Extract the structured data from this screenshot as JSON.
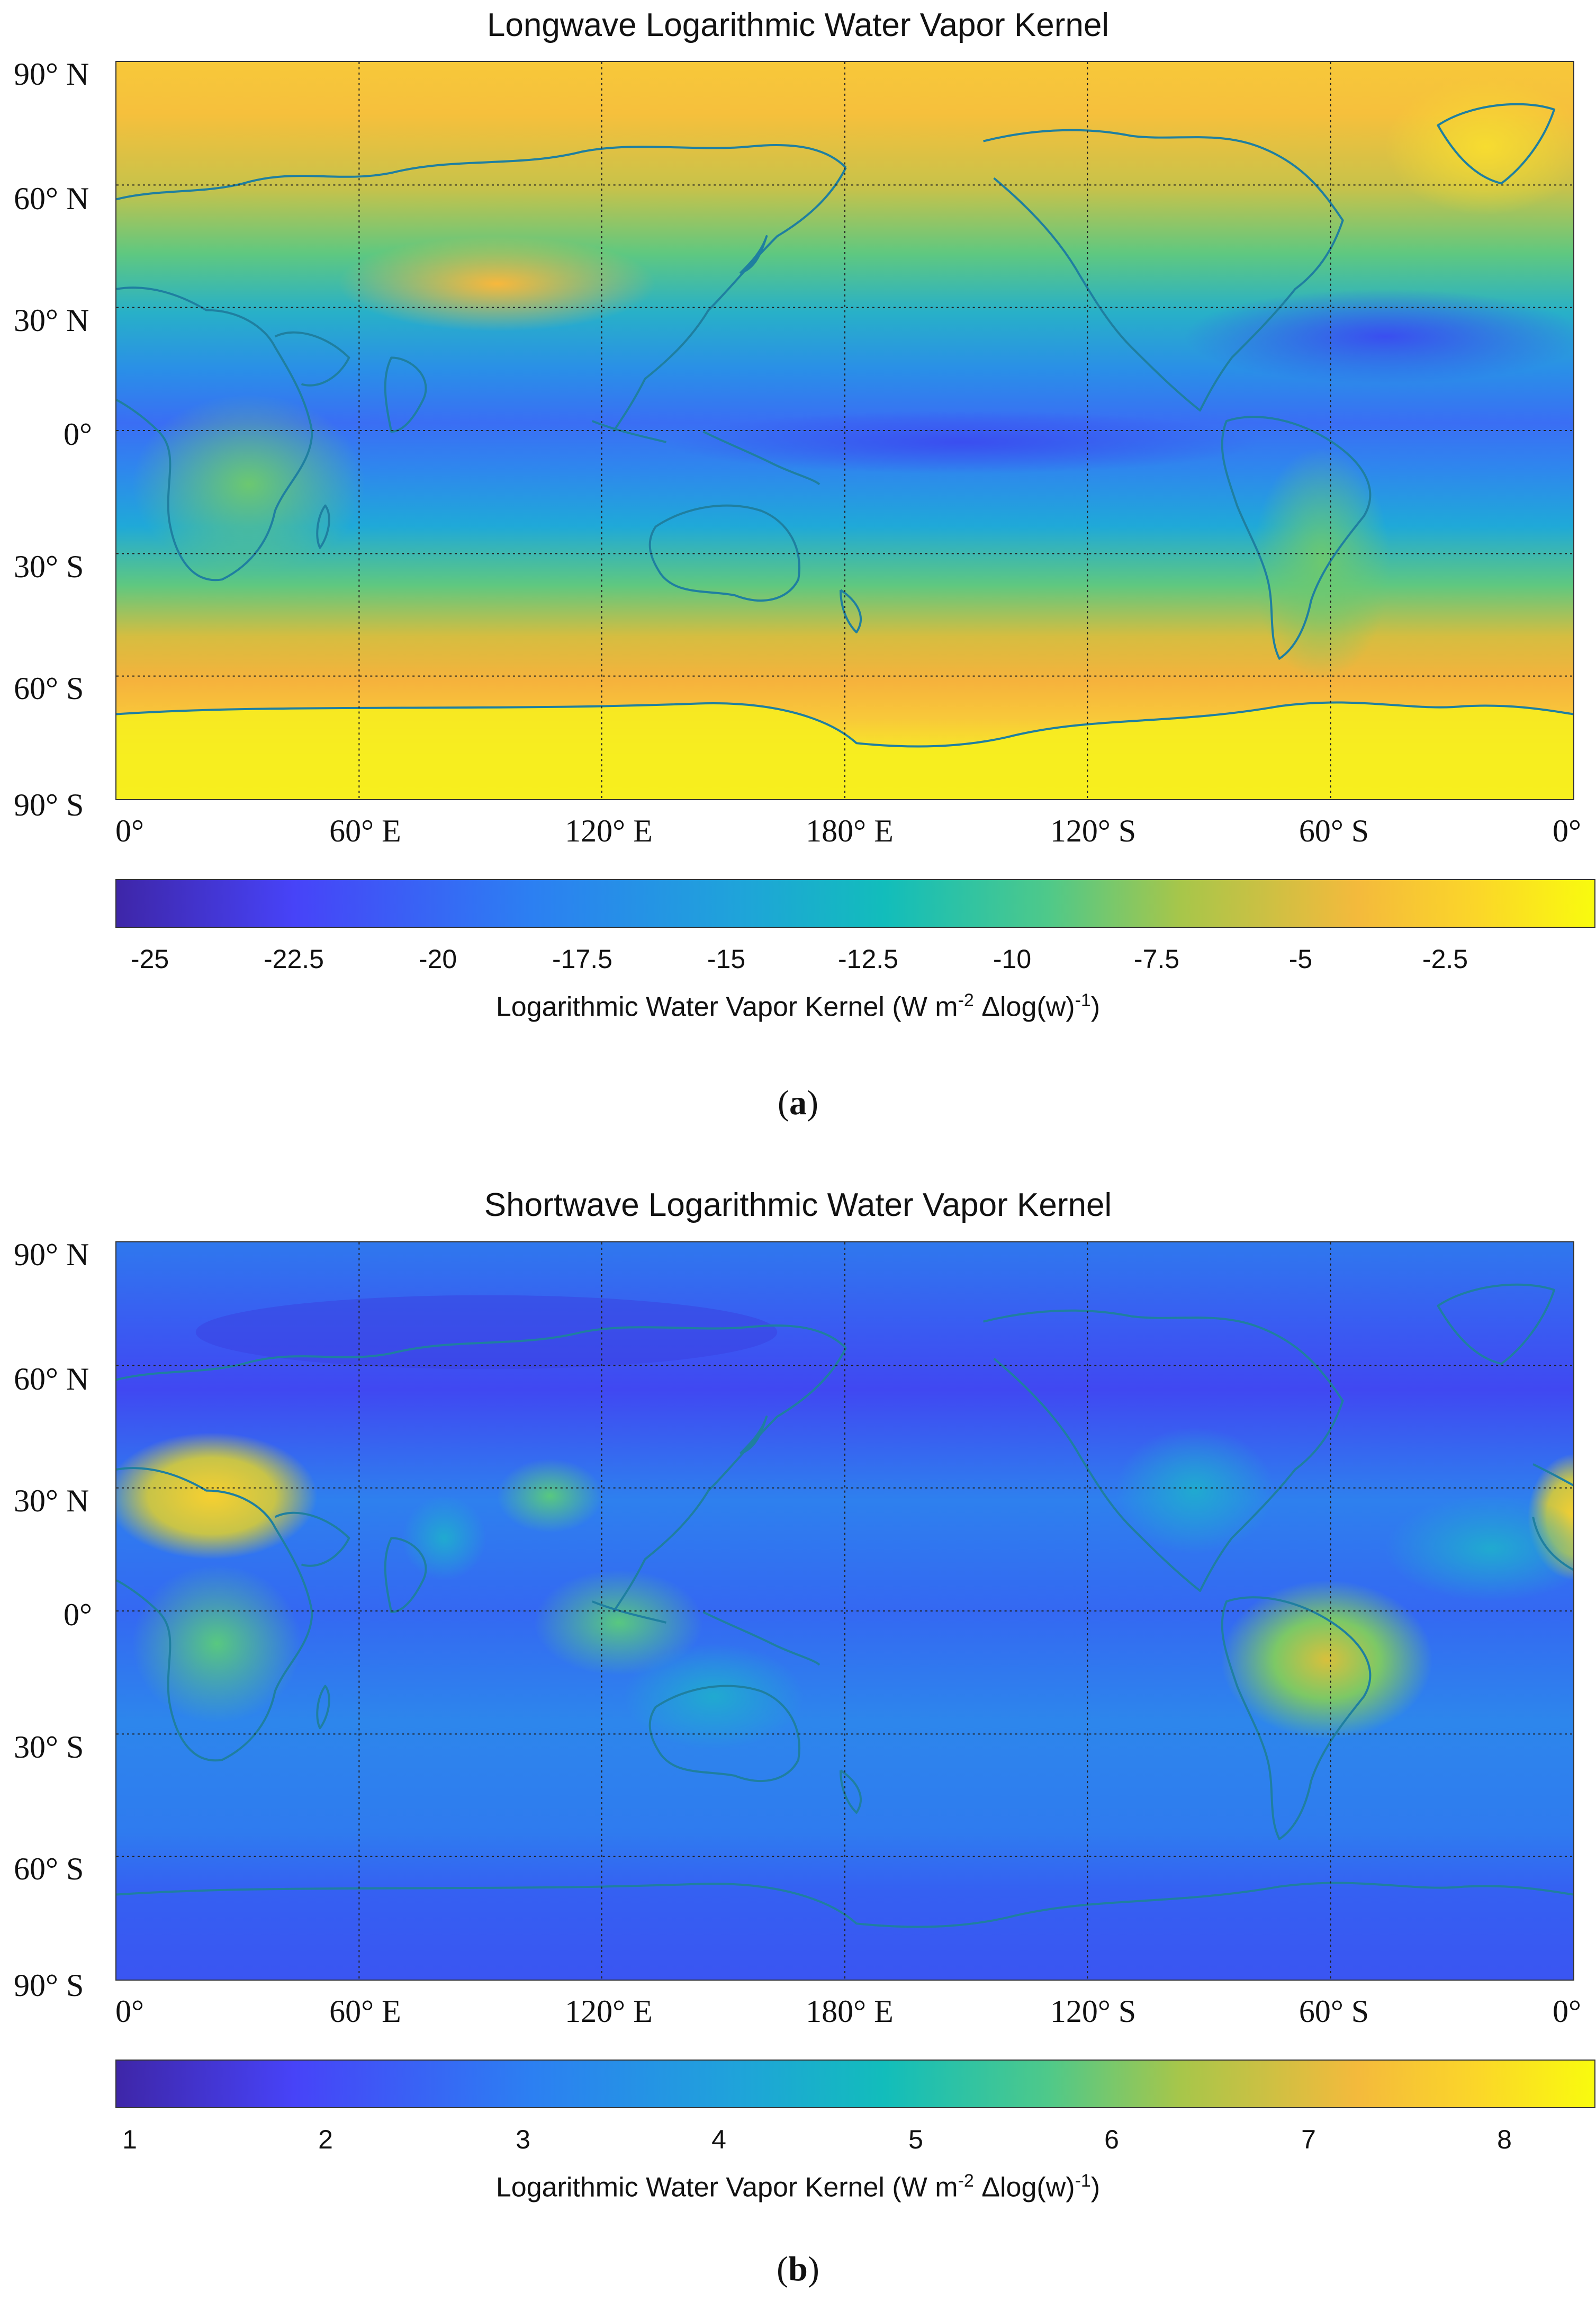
{
  "panels": [
    {
      "id": "a",
      "title": "Longwave Logarithmic Water Vapor Kernel",
      "lat_labels": [
        "90° N",
        "60° N",
        "30° N",
        "0°",
        "30° S",
        "60° S",
        "90° S"
      ],
      "lon_labels": [
        "0°",
        "60° E",
        "120° E",
        "180° E",
        "120° S",
        "60° S",
        "0°"
      ],
      "colorbar": {
        "ticks": [
          "-25",
          "-22.5",
          "-20",
          "-17.5",
          "-15",
          "-12.5",
          "-10",
          "-7.5",
          "-5",
          "-2.5"
        ],
        "label_prefix": "Logarithmic Water Vapor Kernel (W m",
        "label_sup1": "-2",
        "label_mid": " Δlog(w)",
        "label_sup2": "-1",
        "label_suffix": ")"
      },
      "subfigure": "a"
    },
    {
      "id": "b",
      "title": "Shortwave Logarithmic Water Vapor Kernel",
      "lat_labels": [
        "90° N",
        "60° N",
        "30° N",
        "0°",
        "30° S",
        "60° S",
        "90° S"
      ],
      "lon_labels": [
        "0°",
        "60° E",
        "120° E",
        "180° E",
        "120° S",
        "60° S",
        "0°"
      ],
      "colorbar": {
        "ticks": [
          "1",
          "2",
          "3",
          "4",
          "5",
          "6",
          "7",
          "8"
        ],
        "label_prefix": "Logarithmic Water Vapor Kernel (W m",
        "label_sup1": "-2",
        "label_mid": " Δlog(w)",
        "label_sup2": "-1",
        "label_suffix": ")"
      },
      "subfigure": "b"
    }
  ],
  "colors": {
    "parula": [
      "#3e26a8",
      "#4743f8",
      "#2c7ff2",
      "#1fa3da",
      "#12bdbb",
      "#4ec98a",
      "#a7c64a",
      "#f4ba3c",
      "#fbd629",
      "#f9fb0e"
    ],
    "coastline": "#1f7fa0",
    "grid": "#222222"
  }
}
